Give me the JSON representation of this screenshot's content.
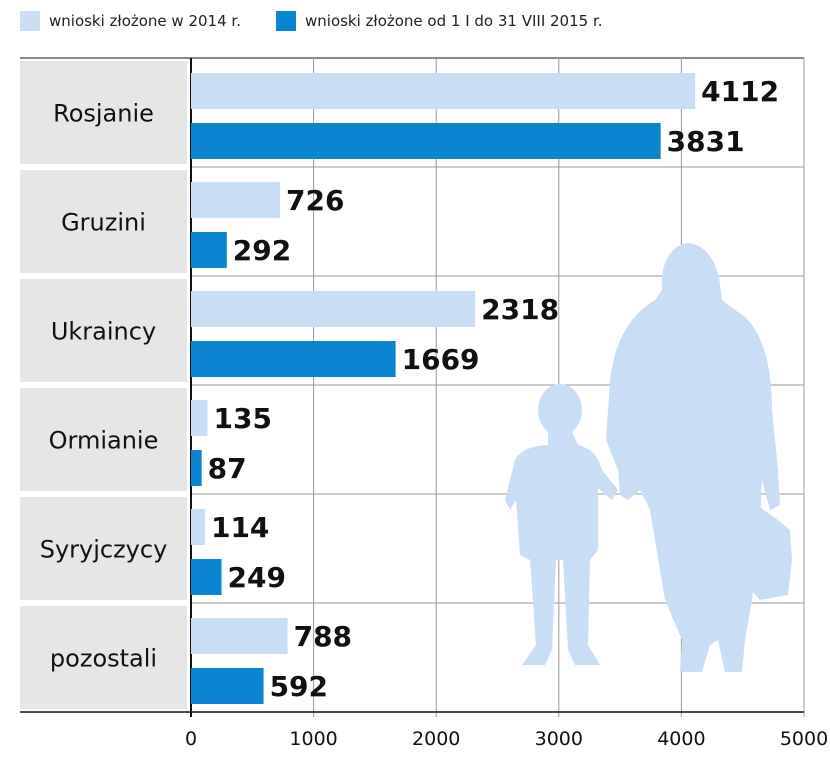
{
  "chart_data": {
    "type": "bar",
    "orientation": "horizontal",
    "categories": [
      "Rosjanie",
      "Gruzini",
      "Ukraincy",
      "Ormianie",
      "Syryjczycy",
      "pozostali"
    ],
    "series": [
      {
        "name": "wnioski złożone w 2014 r.",
        "color": "#c9def4",
        "values": [
          4112,
          726,
          2318,
          135,
          114,
          788
        ]
      },
      {
        "name": "wnioski złożone od 1 I do 31 VIII 2015 r.",
        "color": "#0b85d1",
        "values": [
          3831,
          292,
          1669,
          87,
          249,
          592
        ]
      }
    ],
    "xlim": [
      0,
      5000
    ],
    "xticks": [
      "0",
      "1000",
      "2000",
      "3000",
      "4000",
      "5000"
    ],
    "grid": true,
    "legend": "top-left"
  },
  "colors": {
    "category_panel": "#e6e6e6",
    "silhouette": "#c9def4",
    "grid": "#999999"
  },
  "decoration": {
    "icon": "adult-and-child-silhouette-icon"
  }
}
